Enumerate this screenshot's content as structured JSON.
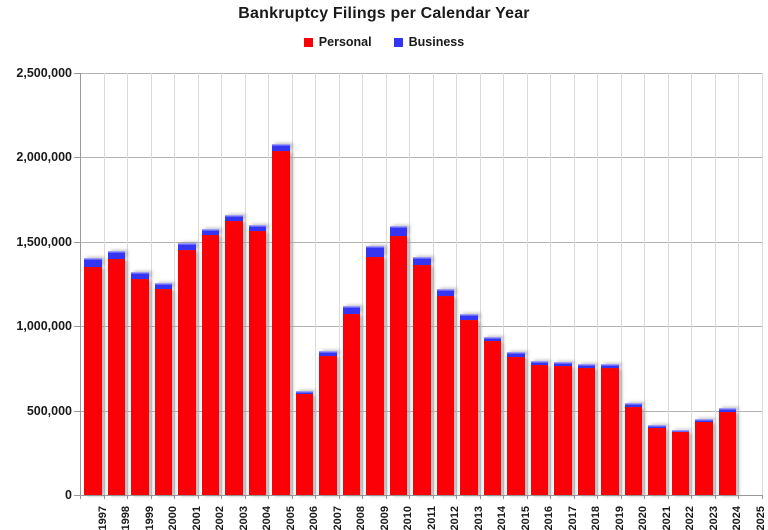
{
  "title": "Bankruptcy Filings per Calendar Year",
  "legend": {
    "items": [
      {
        "label": "Personal",
        "color": "#fb0006"
      },
      {
        "label": "Business",
        "color": "#3434f2"
      }
    ]
  },
  "y_axis": {
    "tick_labels": [
      "2,500,000",
      "2,000,000",
      "1,500,000",
      "1,000,000",
      "500,000",
      "0"
    ],
    "min": 0,
    "max": 2500000,
    "step": 500000
  },
  "colors": {
    "personal_bar": "#fb0006",
    "business_bar": "#3434f2",
    "business_bar_highlight": "#9a9aff",
    "gridline_horizontal": "#b3b3b3",
    "gridline_vertical": "#dadada",
    "axis": "#999999",
    "text": "#1a1a1a",
    "background": "#ffffff"
  },
  "chart_data": {
    "type": "bar",
    "stacked": true,
    "title": "Bankruptcy Filings per Calendar Year",
    "xlabel": "",
    "ylabel": "",
    "ylim": [
      0,
      2500000
    ],
    "grid": "horizontal and vertical gridlines on",
    "legend_position": "top center",
    "x_labels_style": "rotated 90deg, clipped at bottom edge of image",
    "categories": [
      "1997",
      "1998",
      "1999",
      "2000",
      "2001",
      "2002",
      "2003",
      "2004",
      "2005",
      "2006",
      "2007",
      "2008",
      "2009",
      "2010",
      "2011",
      "2012",
      "2013",
      "2014",
      "2015",
      "2016",
      "2017",
      "2018",
      "2019",
      "2020",
      "2021",
      "2022",
      "2023",
      "2024",
      "2025"
    ],
    "series": [
      {
        "name": "Personal",
        "color": "#fb0006",
        "values": [
          1350118,
          1398182,
          1281581,
          1217972,
          1452030,
          1539111,
          1625208,
          1563145,
          2039214,
          597965,
          822590,
          1074225,
          1412838,
          1536799,
          1362847,
          1181016,
          1038720,
          909812,
          819760,
          770846,
          765863,
          751143,
          752160,
          522808,
          399269,
          374240,
          434064,
          494201,
          null
        ]
      },
      {
        "name": "Business",
        "color": "#3434f2",
        "values": [
          54027,
          44367,
          37884,
          35472,
          40099,
          38540,
          35037,
          34317,
          39201,
          19695,
          28322,
          43546,
          60837,
          56282,
          47806,
          40075,
          33212,
          26983,
          24735,
          24114,
          23157,
          22232,
          22780,
          21655,
          14347,
          13481,
          18926,
          23107,
          null
        ]
      }
    ]
  }
}
